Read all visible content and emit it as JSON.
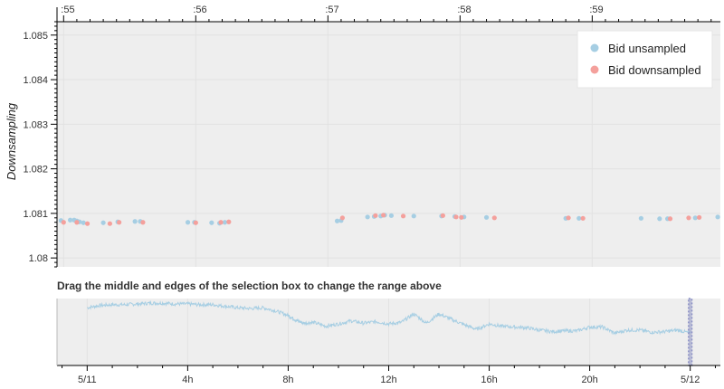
{
  "colors": {
    "plot_bg": "#eeeeee",
    "grid": "#e2e2e2",
    "axis": "#000000",
    "unsampled": "#a6cee3",
    "downsampled": "#f4a09c",
    "selection": "#8a8fc4"
  },
  "chart_data": [
    {
      "type": "scatter",
      "ylabel": "Downsampling",
      "xlabel": "",
      "x_tick_labels": [
        ":55",
        ":56",
        ":57",
        ":58",
        ":59"
      ],
      "y_tick_labels": [
        "1.08",
        "1.081",
        "1.082",
        "1.083",
        "1.084",
        "1.085"
      ],
      "xlim": [
        54.95,
        59.97
      ],
      "ylim": [
        1.0798,
        1.0853
      ],
      "grid": true,
      "legend_position": "top-right",
      "series": [
        {
          "name": "Bid unsampled",
          "color_key": "unsampled",
          "x": [
            54.98,
            55.05,
            55.08,
            55.1,
            55.12,
            55.15,
            55.3,
            55.41,
            55.54,
            55.58,
            55.94,
            55.99,
            56.12,
            56.18,
            56.22,
            57.07,
            57.1,
            57.3,
            57.35,
            57.4,
            57.43,
            57.48,
            57.65,
            57.86,
            57.96,
            58.03,
            58.2,
            58.8,
            58.9,
            59.37,
            59.51,
            59.57,
            59.78,
            59.95
          ],
          "y": [
            1.08084,
            1.08085,
            1.08085,
            1.08083,
            1.08081,
            1.08079,
            1.08079,
            1.08081,
            1.08082,
            1.08082,
            1.0808,
            1.0808,
            1.08079,
            1.08078,
            1.0808,
            1.08083,
            1.08084,
            1.08092,
            1.08093,
            1.08094,
            1.08096,
            1.08095,
            1.08094,
            1.08094,
            1.08093,
            1.08092,
            1.08091,
            1.08089,
            1.08089,
            1.08089,
            1.08088,
            1.08088,
            1.0809,
            1.08092
          ]
        },
        {
          "name": "Bid downsampled",
          "color_key": "downsampled",
          "x": [
            55.0,
            55.1,
            55.18,
            55.35,
            55.42,
            55.6,
            56.0,
            56.19,
            56.25,
            57.11,
            57.36,
            57.42,
            57.57,
            57.87,
            57.97,
            58.01,
            58.26,
            58.82,
            58.93,
            59.59,
            59.73,
            59.81
          ],
          "y": [
            1.0808,
            1.0808,
            1.08077,
            1.08077,
            1.0808,
            1.0808,
            1.08079,
            1.0808,
            1.08081,
            1.0809,
            1.08095,
            1.08096,
            1.08094,
            1.08095,
            1.08092,
            1.08091,
            1.0809,
            1.0809,
            1.08089,
            1.08088,
            1.0809,
            1.08091
          ]
        }
      ]
    },
    {
      "type": "line",
      "title": "Drag the middle and edges of the selection box to change the range above",
      "x_tick_labels": [
        "5/11",
        "4h",
        "8h",
        "12h",
        "16h",
        "20h",
        "5/12"
      ],
      "x_tick_hours": [
        0,
        4,
        8,
        12,
        16,
        20,
        24
      ],
      "xlim_hours": [
        -1.2,
        25.2
      ],
      "ylim": [
        1.0778,
        1.0865
      ],
      "selection_hours": [
        23.97,
        24.03
      ],
      "series": [
        {
          "name": "",
          "color_key": "unsampled",
          "x": [
            0,
            0.5,
            1,
            1.5,
            2,
            2.5,
            3,
            3.5,
            4,
            4.5,
            5,
            5.5,
            6,
            6.5,
            7,
            7.5,
            8,
            8.3,
            8.6,
            9,
            9.5,
            10,
            10.5,
            11,
            11.5,
            12,
            12.5,
            13,
            13.5,
            14,
            14.5,
            15,
            15.5,
            16,
            16.5,
            17,
            17.5,
            18,
            18.5,
            19,
            19.5,
            20,
            20.5,
            21,
            21.5,
            22,
            22.5,
            23,
            23.5,
            24
          ],
          "y": [
            1.0853,
            1.0856,
            1.0857,
            1.0857,
            1.0858,
            1.0859,
            1.0859,
            1.0858,
            1.0858,
            1.0857,
            1.0857,
            1.0855,
            1.0853,
            1.0852,
            1.0853,
            1.0849,
            1.0843,
            1.0837,
            1.0833,
            1.0834,
            1.0829,
            1.0832,
            1.0836,
            1.0833,
            1.0835,
            1.0832,
            1.0834,
            1.0845,
            1.0833,
            1.0845,
            1.0838,
            1.0831,
            1.0825,
            1.0832,
            1.0829,
            1.0828,
            1.0827,
            1.0824,
            1.0822,
            1.0823,
            1.0823,
            1.0828,
            1.0828,
            1.082,
            1.0824,
            1.0824,
            1.0821,
            1.0822,
            1.0824,
            1.082
          ]
        }
      ]
    }
  ]
}
